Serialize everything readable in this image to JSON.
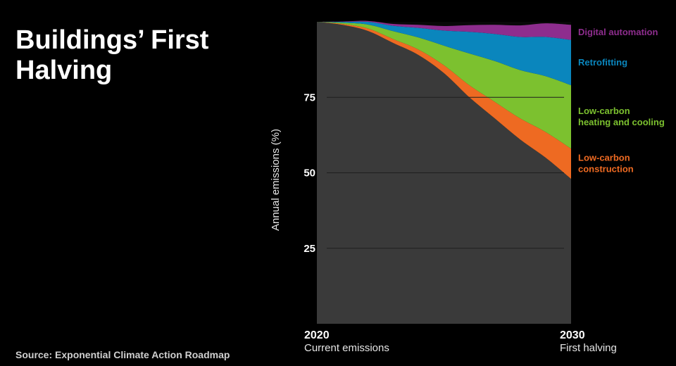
{
  "title": "Buildings’ First Halving",
  "source": "Source:  Exponential Climate Action Roadmap",
  "chart_data": {
    "type": "area",
    "stacked": true,
    "ylabel": "Annual emissions (%)",
    "ylim": [
      0,
      100
    ],
    "xlim": [
      2020,
      2030
    ],
    "yticks": [
      "25",
      "50",
      "75"
    ],
    "ytick_values": [
      25,
      50,
      75
    ],
    "grid": true,
    "x_labels": [
      {
        "year": "2020",
        "sub": "Current emissions"
      },
      {
        "year": "2030",
        "sub": "First halving"
      }
    ],
    "x": [
      2020,
      2021,
      2022,
      2023,
      2024,
      2025,
      2026,
      2027,
      2028,
      2029,
      2030
    ],
    "baseline": {
      "name": "",
      "color": "#3a3a3a",
      "values": [
        100,
        99,
        97,
        93,
        89,
        83,
        75,
        68,
        61,
        55,
        48
      ]
    },
    "series": [
      {
        "name": "Low-carbon construction",
        "lines": [
          "Low-carbon",
          "construction"
        ],
        "color": "#ee6a22",
        "values": [
          0,
          0.3,
          0.8,
          1.3,
          1.8,
          2.6,
          4.0,
          5.5,
          7.0,
          8.5,
          10
        ]
      },
      {
        "name": "Low-carbon heating and cooling",
        "lines": [
          "Low-carbon",
          "heating and cooling"
        ],
        "color": "#7cc12f",
        "values": [
          0,
          0.4,
          1.3,
          2.6,
          4.0,
          6.5,
          10.5,
          13.5,
          16.0,
          18.5,
          21
        ]
      },
      {
        "name": "Retrofitting",
        "lines": [
          "Retrofitting"
        ],
        "color": "#0a86bd",
        "values": [
          0,
          0.3,
          0.9,
          1.8,
          3.2,
          5.0,
          7.2,
          9.0,
          11.0,
          13.0,
          15
        ]
      },
      {
        "name": "Digital automation",
        "lines": [
          "Digital automation"
        ],
        "color": "#8e2d8e",
        "values": [
          0,
          0.1,
          0.3,
          0.6,
          1.0,
          1.5,
          2.2,
          3.0,
          3.8,
          4.5,
          5
        ]
      }
    ]
  }
}
